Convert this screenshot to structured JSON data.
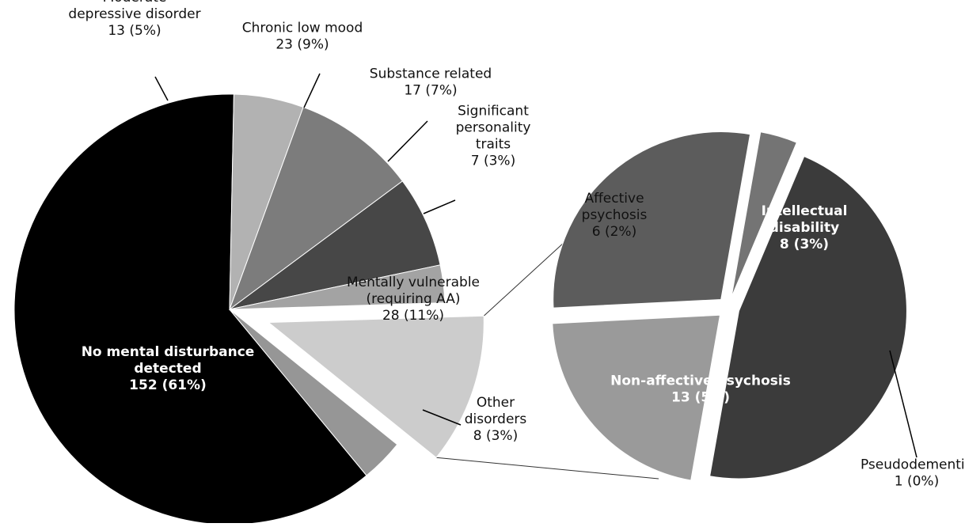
{
  "chart_data": [
    {
      "type": "pie",
      "slices": [
        {
          "key": "no-mental-disturbance",
          "lines": [
            "No mental disturbance",
            "detected",
            "152 (61%)"
          ],
          "value": 152,
          "percent": "61%",
          "color": "#000000",
          "label_color": "light"
        },
        {
          "key": "moderate-depressive-disorder",
          "lines": [
            "Moderate",
            "depressive disorder",
            "13 (5%)"
          ],
          "value": 13,
          "percent": "5%",
          "color": "#b2b2b2",
          "label_color": "dark"
        },
        {
          "key": "chronic-low-mood",
          "lines": [
            "Chronic low mood",
            "23 (9%)"
          ],
          "value": 23,
          "percent": "9%",
          "color": "#7c7c7c",
          "label_color": "dark"
        },
        {
          "key": "substance-related",
          "lines": [
            "Substance related",
            "17 (7%)"
          ],
          "value": 17,
          "percent": "7%",
          "color": "#474747",
          "label_color": "dark"
        },
        {
          "key": "significant-personality-traits",
          "lines": [
            "Significant",
            "personality",
            "traits",
            "7 (3%)"
          ],
          "value": 7,
          "percent": "3%",
          "color": "#a3a3a3",
          "label_color": "dark"
        },
        {
          "key": "mentally-vulnerable",
          "lines": [
            "Mentally vulnerable",
            "(requiring AA)",
            "28 (11%)"
          ],
          "value": 28,
          "percent": "11%",
          "color": "#cccccc",
          "label_color": "dark",
          "exploded": true
        },
        {
          "key": "other-disorders",
          "lines": [
            "Other",
            "disorders",
            "8 (3%)"
          ],
          "value": 8,
          "percent": "3%",
          "color": "#969696",
          "label_color": "dark"
        }
      ]
    },
    {
      "type": "pie",
      "slices": [
        {
          "key": "affective-psychosis",
          "lines": [
            "Affective",
            "psychosis",
            "6 (2%)"
          ],
          "value": 6,
          "percent": "2%",
          "color": "#9a9a9a",
          "label_color": "dark"
        },
        {
          "key": "intellectual-disability",
          "lines": [
            "Intellectual",
            "disability",
            "8 (3%)"
          ],
          "value": 8,
          "percent": "3%",
          "color": "#5c5c5c",
          "label_color": "light"
        },
        {
          "key": "pseudodementia",
          "lines": [
            "Pseudodementia",
            "1 (0%)"
          ],
          "value": 1,
          "percent": "0%",
          "color": "#747474",
          "label_color": "dark"
        },
        {
          "key": "non-affective-psychosis",
          "lines": [
            "Non-affective psychosis",
            "13 (5%)"
          ],
          "value": 13,
          "percent": "5%",
          "color": "#3b3b3b",
          "label_color": "light"
        }
      ]
    }
  ]
}
